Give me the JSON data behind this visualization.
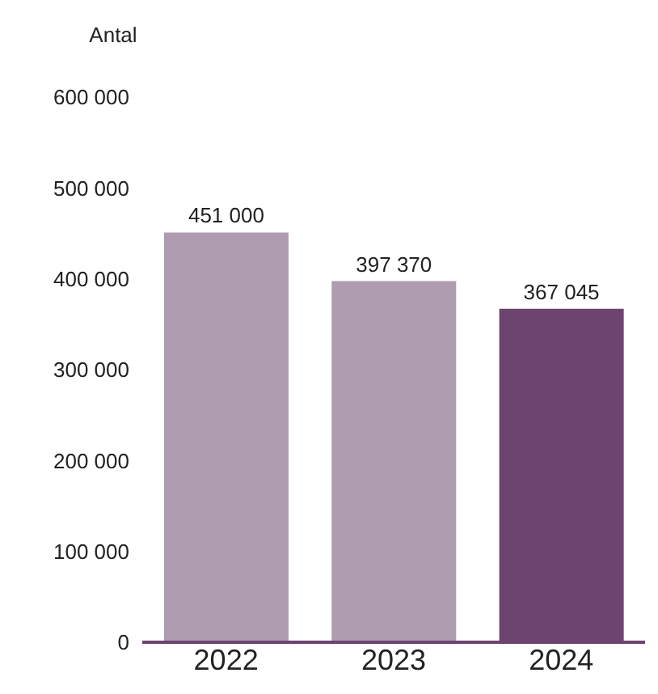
{
  "chart_data": {
    "type": "bar",
    "ylabel": "Antal",
    "categories": [
      "2022",
      "2023",
      "2024"
    ],
    "values": [
      451000,
      397370,
      367045
    ],
    "colors": [
      "#b09cb0",
      "#b09cb0",
      "#6b4470"
    ],
    "value_labels": [
      "451 000",
      "397 370",
      "367 045"
    ],
    "ylim": [
      0,
      600000
    ],
    "yticks": [
      {
        "value": 0,
        "label": "0"
      },
      {
        "value": 100000,
        "label": "100 000"
      },
      {
        "value": 200000,
        "label": "200 000"
      },
      {
        "value": 300000,
        "label": "300 000"
      },
      {
        "value": 400000,
        "label": "400 000"
      },
      {
        "value": 500000,
        "label": "500 000"
      },
      {
        "value": 600000,
        "label": "600 000"
      }
    ],
    "grid": false,
    "legend": false
  }
}
